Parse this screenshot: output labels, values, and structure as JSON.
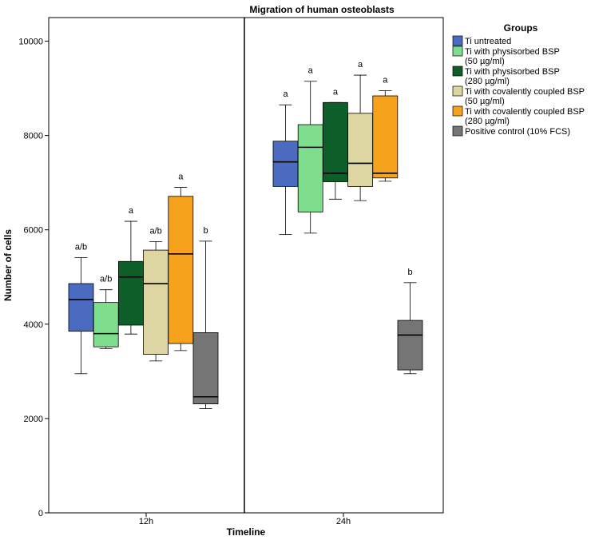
{
  "chart_data": {
    "type": "boxplot",
    "title": "Migration of human osteoblasts",
    "xlabel": "Timeline",
    "ylabel": "Number of cells",
    "ylim": [
      0,
      10500
    ],
    "yticks": [
      0,
      2000,
      4000,
      6000,
      8000,
      10000
    ],
    "categories": [
      "12h",
      "24h"
    ],
    "legend": {
      "title": "Groups",
      "position": "right",
      "entries": [
        {
          "lines": [
            "Ti untreated"
          ]
        },
        {
          "lines": [
            "Ti with physisorbed BSP",
            "(50 µg/ml)"
          ]
        },
        {
          "lines": [
            "Ti with physisorbed BSP",
            "(280 µg/ml)"
          ]
        },
        {
          "lines": [
            "Ti with covalently coupled BSP",
            "(50 µg/ml)"
          ]
        },
        {
          "lines": [
            "Ti with covalently coupled BSP",
            "(280 µg/ml)"
          ]
        },
        {
          "lines": [
            "Positive control (10% FCS)"
          ]
        }
      ]
    },
    "series": [
      {
        "name": "Ti untreated",
        "color": "#4a6bbf",
        "boxes": [
          {
            "category": "12h",
            "min": 2950,
            "q1": 3850,
            "median": 4520,
            "q3": 4860,
            "max": 5410,
            "label": "a/b"
          },
          {
            "category": "24h",
            "min": 5900,
            "q1": 6920,
            "median": 7440,
            "q3": 7880,
            "max": 8650,
            "label": "a"
          }
        ]
      },
      {
        "name": "Ti with physisorbed BSP (50 µg/ml)",
        "color": "#7ede8e",
        "boxes": [
          {
            "category": "12h",
            "min": 3480,
            "q1": 3520,
            "median": 3800,
            "q3": 4460,
            "max": 4730,
            "label": "a/b"
          },
          {
            "category": "24h",
            "min": 5930,
            "q1": 6380,
            "median": 7750,
            "q3": 8230,
            "max": 9150,
            "label": "a"
          }
        ]
      },
      {
        "name": "Ti with physisorbed BSP (280 µg/ml)",
        "color": "#0e5e2a",
        "boxes": [
          {
            "category": "12h",
            "min": 3790,
            "q1": 3980,
            "median": 5000,
            "q3": 5330,
            "max": 6180,
            "label": "a"
          },
          {
            "category": "24h",
            "min": 6650,
            "q1": 7020,
            "median": 7200,
            "q3": 8700,
            "max": 8700,
            "label": "a"
          }
        ]
      },
      {
        "name": "Ti with covalently coupled BSP (50 µg/ml)",
        "color": "#ddd5a2",
        "boxes": [
          {
            "category": "12h",
            "min": 3220,
            "q1": 3360,
            "median": 4860,
            "q3": 5570,
            "max": 5750,
            "label": "a/b"
          },
          {
            "category": "24h",
            "min": 6620,
            "q1": 6920,
            "median": 7410,
            "q3": 8470,
            "max": 9280,
            "label": "a"
          }
        ]
      },
      {
        "name": "Ti with covalently coupled BSP (280 µg/ml)",
        "color": "#f7a21c",
        "boxes": [
          {
            "category": "12h",
            "min": 3440,
            "q1": 3590,
            "median": 5490,
            "q3": 6710,
            "max": 6900,
            "label": "a"
          },
          {
            "category": "24h",
            "min": 7030,
            "q1": 7100,
            "median": 7200,
            "q3": 8840,
            "max": 8950,
            "label": "a"
          }
        ]
      },
      {
        "name": "Positive control (10% FCS)",
        "color": "#757575",
        "boxes": [
          {
            "category": "12h",
            "min": 2210,
            "q1": 2310,
            "median": 2460,
            "q3": 3820,
            "max": 5760,
            "label": "b"
          },
          {
            "category": "24h",
            "min": 2950,
            "q1": 3030,
            "median": 3770,
            "q3": 4080,
            "max": 4880,
            "label": "b"
          }
        ]
      }
    ]
  }
}
